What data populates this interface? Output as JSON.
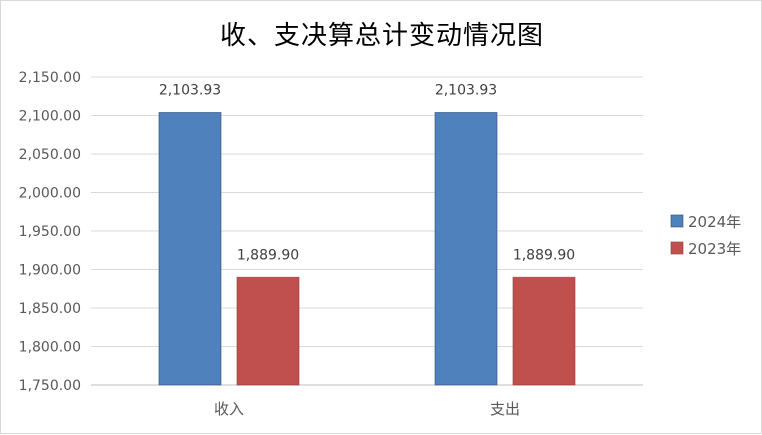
{
  "chart_data": {
    "type": "bar",
    "title": "收、支决算总计变动情况图",
    "categories": [
      "收入",
      "支出"
    ],
    "series": [
      {
        "name": "2024年",
        "values": [
          2103.93,
          2103.93
        ],
        "labels": [
          "2,103.93",
          "2,103.93"
        ],
        "color": "#4f81bd"
      },
      {
        "name": "2023年",
        "values": [
          1889.9,
          1889.9
        ],
        "labels": [
          "1,889.90",
          "1,889.90"
        ],
        "color": "#c0504d"
      }
    ],
    "ylim": [
      1750,
      2150
    ],
    "yticks": [
      1750,
      1800,
      1850,
      1900,
      1950,
      2000,
      2050,
      2100,
      2150
    ],
    "ytick_labels": [
      "1,750.00",
      "1,800.00",
      "1,850.00",
      "1,900.00",
      "1,950.00",
      "2,000.00",
      "2,050.00",
      "2,100.00",
      "2,150.00"
    ],
    "grid": true,
    "legend_position": "right"
  }
}
